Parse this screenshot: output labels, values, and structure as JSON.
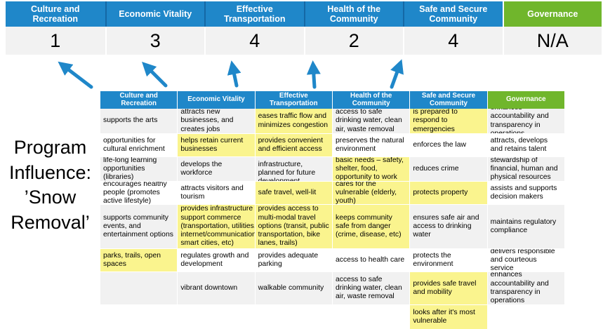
{
  "colors": {
    "header_blue": "#1F87C9",
    "header_green": "#70B62C",
    "score_row_bg": "#F2F2F2",
    "row_band_bg": "#F1F1F1",
    "highlight_yellow": "#FAF48E",
    "arrow_blue": "#1F87C9"
  },
  "title_lines": [
    "Program",
    "Influence:",
    "’Snow",
    "Removal’"
  ],
  "arrows": {
    "count": 5,
    "color": "#1F87C9",
    "meaning": "up-arrow-icon"
  },
  "scoreband": {
    "columns": [
      {
        "label": "Culture and Recreation",
        "score": "1"
      },
      {
        "label": "Economic Vitality",
        "score": "3"
      },
      {
        "label": "Effective Transportation",
        "score": "4"
      },
      {
        "label": "Health of the Community",
        "score": "2"
      },
      {
        "label": "Safe and Secure Community",
        "score": "4"
      },
      {
        "label": "Governance",
        "score": "N/A"
      }
    ]
  },
  "matrix": {
    "headers": [
      {
        "label": "Culture and Recreation"
      },
      {
        "label": "Economic Vitality"
      },
      {
        "label": "Effective Transportation"
      },
      {
        "label": "Health of the Community"
      },
      {
        "label": "Safe and Secure Community"
      },
      {
        "label": "Governance"
      }
    ],
    "rows": [
      {
        "cells": [
          {
            "text": "supports the arts",
            "hl": false
          },
          {
            "text": "attracts new businesses, and creates jobs",
            "hl": false
          },
          {
            "text": "eases traffic flow and minimizes congestion",
            "hl": true
          },
          {
            "text": "access to safe drinking water, clean air, waste removal",
            "hl": false
          },
          {
            "text": "is prepared to respond to emergencies",
            "hl": true
          },
          {
            "text": "enhances accountability and transparency in operations",
            "hl": false
          }
        ]
      },
      {
        "cells": [
          {
            "text": "opportunities for cultural enrichment",
            "hl": false
          },
          {
            "text": "helps retain current businesses",
            "hl": true
          },
          {
            "text": "provides convenient and efficient access",
            "hl": true
          },
          {
            "text": "preserves the natural environment",
            "hl": false
          },
          {
            "text": "enforces the law",
            "hl": false
          },
          {
            "text": "attracts, develops and retains talent",
            "hl": false
          }
        ]
      },
      {
        "cells": [
          {
            "text": "life-long learning opportunities (libraries)",
            "hl": false
          },
          {
            "text": "develops the workforce",
            "hl": false
          },
          {
            "text": "well-maintained infrastructure, planned for future development",
            "hl": false
          },
          {
            "text": "basic needs – safety, shelter, food, opportunity to work",
            "hl": true
          },
          {
            "text": "reduces crime",
            "hl": false
          },
          {
            "text": "stewardship of financial, human and physical resources",
            "hl": false
          }
        ]
      },
      {
        "cells": [
          {
            "text": "encourages healthy people (promotes active lifestyle)",
            "hl": false
          },
          {
            "text": "attracts visitors and tourism",
            "hl": false
          },
          {
            "text": "safe travel, well-lit",
            "hl": true
          },
          {
            "text": "cares for the vulnerable (elderly, youth)",
            "hl": true
          },
          {
            "text": "protects property",
            "hl": true
          },
          {
            "text": "assists and supports decision makers",
            "hl": false
          }
        ]
      },
      {
        "cells": [
          {
            "text": "supports community events, and entertainment options",
            "hl": false
          },
          {
            "text": "provides infrastructure to support commerce (transportation, utilities, internet/communications, smart cities, etc)",
            "hl": true
          },
          {
            "text": "provides access to multi-modal travel options (transit, public transportation, bike lanes, trails)",
            "hl": true
          },
          {
            "text": "keeps community safe from danger (crime, disease, etc)",
            "hl": true
          },
          {
            "text": "ensures safe air and access to drinking water",
            "hl": false
          },
          {
            "text": "maintains regulatory compliance",
            "hl": false
          }
        ]
      },
      {
        "cells": [
          {
            "text": "parks, trails, open spaces",
            "hl": true
          },
          {
            "text": "regulates growth and development",
            "hl": false
          },
          {
            "text": "provides adequate parking",
            "hl": false
          },
          {
            "text": "access to health care",
            "hl": false
          },
          {
            "text": "protects the environment",
            "hl": false
          },
          {
            "text": "delivers responsible and courteous service",
            "hl": false
          }
        ]
      },
      {
        "cells": [
          {
            "text": "",
            "hl": false
          },
          {
            "text": "vibrant downtown",
            "hl": false
          },
          {
            "text": "walkable community",
            "hl": false
          },
          {
            "text": "access to safe drinking water, clean air, waste removal",
            "hl": false
          },
          {
            "text": "provides safe travel and mobility",
            "hl": true
          },
          {
            "text": "enhances accountability and transparency in operations",
            "hl": false
          }
        ]
      },
      {
        "cells": [
          {
            "text": "",
            "hl": false
          },
          {
            "text": "",
            "hl": false
          },
          {
            "text": "",
            "hl": false
          },
          {
            "text": "",
            "hl": false
          },
          {
            "text": "looks after it's most vulnerable",
            "hl": true
          },
          {
            "text": "",
            "hl": false
          }
        ]
      }
    ]
  }
}
